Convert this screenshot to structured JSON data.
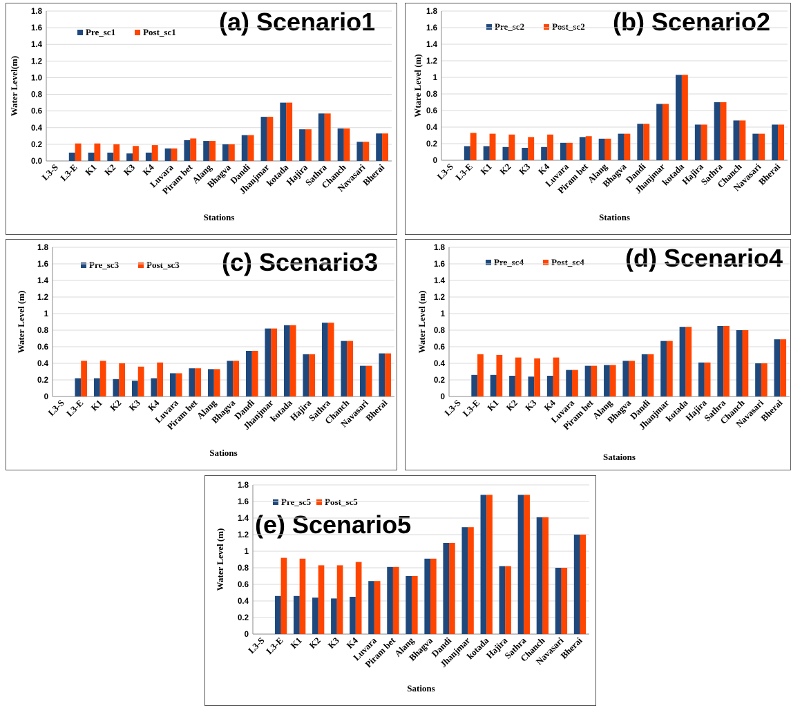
{
  "colors": {
    "pre": "#1f497d",
    "post": "#ff4500",
    "grid": "#d9d9d9",
    "axis": "#888888"
  },
  "chart_data": [
    {
      "type": "bar",
      "title": "(a) Scenario1",
      "xlabel": "Stations",
      "ylabel": "Water Level(m)",
      "ylim": [
        0,
        1.8
      ],
      "yticks": [
        "0.0",
        "0.2",
        "0.4",
        "0.6",
        "0.8",
        "1.0",
        "1.2",
        "1.4",
        "1.6",
        "1.8"
      ],
      "categories": [
        "L3-S",
        "L3-E",
        "K1",
        "K2",
        "K3",
        "K4",
        "Luvara",
        "Piram bet",
        "Alang",
        "Bhagva",
        "Dandi",
        "Jhanjmar",
        "kotada",
        "Hajira",
        "Sathra",
        "Chanch",
        "Navasari",
        "Bherai"
      ],
      "series": [
        {
          "name": "Pre_sc1",
          "values": [
            0,
            0.1,
            0.1,
            0.1,
            0.09,
            0.1,
            0.15,
            0.25,
            0.24,
            0.2,
            0.31,
            0.53,
            0.7,
            0.38,
            0.57,
            0.39,
            0.23,
            0.33
          ]
        },
        {
          "name": "Post_sc1",
          "values": [
            0,
            0.21,
            0.21,
            0.2,
            0.18,
            0.19,
            0.15,
            0.27,
            0.24,
            0.2,
            0.31,
            0.53,
            0.7,
            0.38,
            0.57,
            0.39,
            0.23,
            0.33
          ]
        }
      ]
    },
    {
      "type": "bar",
      "title": "(b) Scenario2",
      "xlabel": "Stations",
      "ylabel": "Wtare Level (m)",
      "ylim": [
        0,
        1.8
      ],
      "yticks": [
        "0",
        "0.2",
        "0.4",
        "0.6",
        "0.8",
        "1",
        "1.2",
        "1.4",
        "1.6",
        "1.8"
      ],
      "categories": [
        "L3-S",
        "L3-E",
        "K1",
        "K2",
        "K3",
        "K4",
        "Luvara",
        "Piram bet",
        "Alang",
        "Bhagva",
        "Dandi",
        "Jhanjmar",
        "kotada",
        "Hajira",
        "Sathra",
        "Chanch",
        "Navasari",
        "Bherai"
      ],
      "series": [
        {
          "name": "Pre_sc2",
          "values": [
            0,
            0.17,
            0.17,
            0.16,
            0.15,
            0.16,
            0.21,
            0.28,
            0.26,
            0.32,
            0.44,
            0.68,
            1.03,
            0.43,
            0.7,
            0.48,
            0.32,
            0.43
          ]
        },
        {
          "name": "Post_sc2",
          "values": [
            0,
            0.33,
            0.32,
            0.31,
            0.28,
            0.31,
            0.21,
            0.29,
            0.26,
            0.32,
            0.44,
            0.68,
            1.03,
            0.43,
            0.7,
            0.48,
            0.32,
            0.43
          ]
        }
      ]
    },
    {
      "type": "bar",
      "title": "(c) Scenario3",
      "xlabel": "Sations",
      "ylabel": "Water Level (m)",
      "ylim": [
        0,
        1.8
      ],
      "yticks": [
        "0",
        "0.2",
        "0.4",
        "0.6",
        "0.8",
        "1",
        "1.2",
        "1.4",
        "1.6",
        "1.8"
      ],
      "categories": [
        "L3-S",
        "L3-E",
        "K1",
        "K2",
        "K3",
        "K4",
        "Luvara",
        "Piram bet",
        "Alang",
        "Bhagva",
        "Dandi",
        "Jhanjmar",
        "kotada",
        "Hajira",
        "Sathra",
        "Chanch",
        "Navasari",
        "Bherai"
      ],
      "series": [
        {
          "name": "Pre_sc3",
          "values": [
            0,
            0.22,
            0.22,
            0.21,
            0.19,
            0.22,
            0.28,
            0.34,
            0.33,
            0.43,
            0.55,
            0.82,
            0.86,
            0.51,
            0.89,
            0.67,
            0.37,
            0.52
          ]
        },
        {
          "name": "Post_sc3",
          "values": [
            0,
            0.43,
            0.43,
            0.4,
            0.36,
            0.41,
            0.28,
            0.34,
            0.33,
            0.43,
            0.55,
            0.82,
            0.86,
            0.51,
            0.89,
            0.67,
            0.37,
            0.52
          ]
        }
      ]
    },
    {
      "type": "bar",
      "title": "(d) Scenario4",
      "xlabel": "Sataions",
      "ylabel": "Water Level (m)",
      "ylim": [
        0,
        1.8
      ],
      "yticks": [
        "0",
        "0.2",
        "0.4",
        "0.6",
        "0.8",
        "1",
        "1.2",
        "1.4",
        "1.6",
        "1.8"
      ],
      "categories": [
        "L3-S",
        "L3-E",
        "K1",
        "K2",
        "K3",
        "K4",
        "Luvara",
        "Piram bet",
        "Alang",
        "Bhagva",
        "Dandi",
        "Jhanjmar",
        "kotada",
        "Hajira",
        "Sathra",
        "Chanch",
        "Navasari",
        "Bherai"
      ],
      "series": [
        {
          "name": "Pre_sc4",
          "values": [
            0,
            0.26,
            0.26,
            0.25,
            0.24,
            0.25,
            0.32,
            0.37,
            0.38,
            0.43,
            0.51,
            0.67,
            0.84,
            0.41,
            0.85,
            0.8,
            0.4,
            0.69
          ]
        },
        {
          "name": "Post_sc4",
          "values": [
            0,
            0.51,
            0.5,
            0.47,
            0.46,
            0.47,
            0.32,
            0.37,
            0.38,
            0.43,
            0.51,
            0.67,
            0.84,
            0.41,
            0.85,
            0.8,
            0.4,
            0.69
          ]
        }
      ]
    },
    {
      "type": "bar",
      "title": "(e) Scenario5",
      "xlabel": "Sations",
      "ylabel": "Water Level (m)",
      "ylim": [
        0,
        1.8
      ],
      "yticks": [
        "0",
        "0.2",
        "0.4",
        "0.6",
        "0.8",
        "1",
        "1.2",
        "1.4",
        "1.6",
        "1.8"
      ],
      "categories": [
        "L3-S",
        "L3-E",
        "K1",
        "K2",
        "K3",
        "K4",
        "Luvara",
        "Piram bet",
        "Alang",
        "Bhagva",
        "Dandi",
        "Jhanjmar",
        "kotada",
        "Hajira",
        "Sathra",
        "Chanch",
        "Navasari",
        "Bherai"
      ],
      "series": [
        {
          "name": "Pre_sc5",
          "values": [
            0,
            0.46,
            0.46,
            0.44,
            0.43,
            0.45,
            0.64,
            0.81,
            0.7,
            0.91,
            1.1,
            1.29,
            1.68,
            0.82,
            1.68,
            1.41,
            0.8,
            1.2
          ]
        },
        {
          "name": "Post_sc5",
          "values": [
            0,
            0.92,
            0.91,
            0.83,
            0.83,
            0.87,
            0.64,
            0.81,
            0.7,
            0.91,
            1.1,
            1.29,
            1.68,
            0.82,
            1.68,
            1.41,
            0.8,
            1.2
          ]
        }
      ]
    }
  ]
}
